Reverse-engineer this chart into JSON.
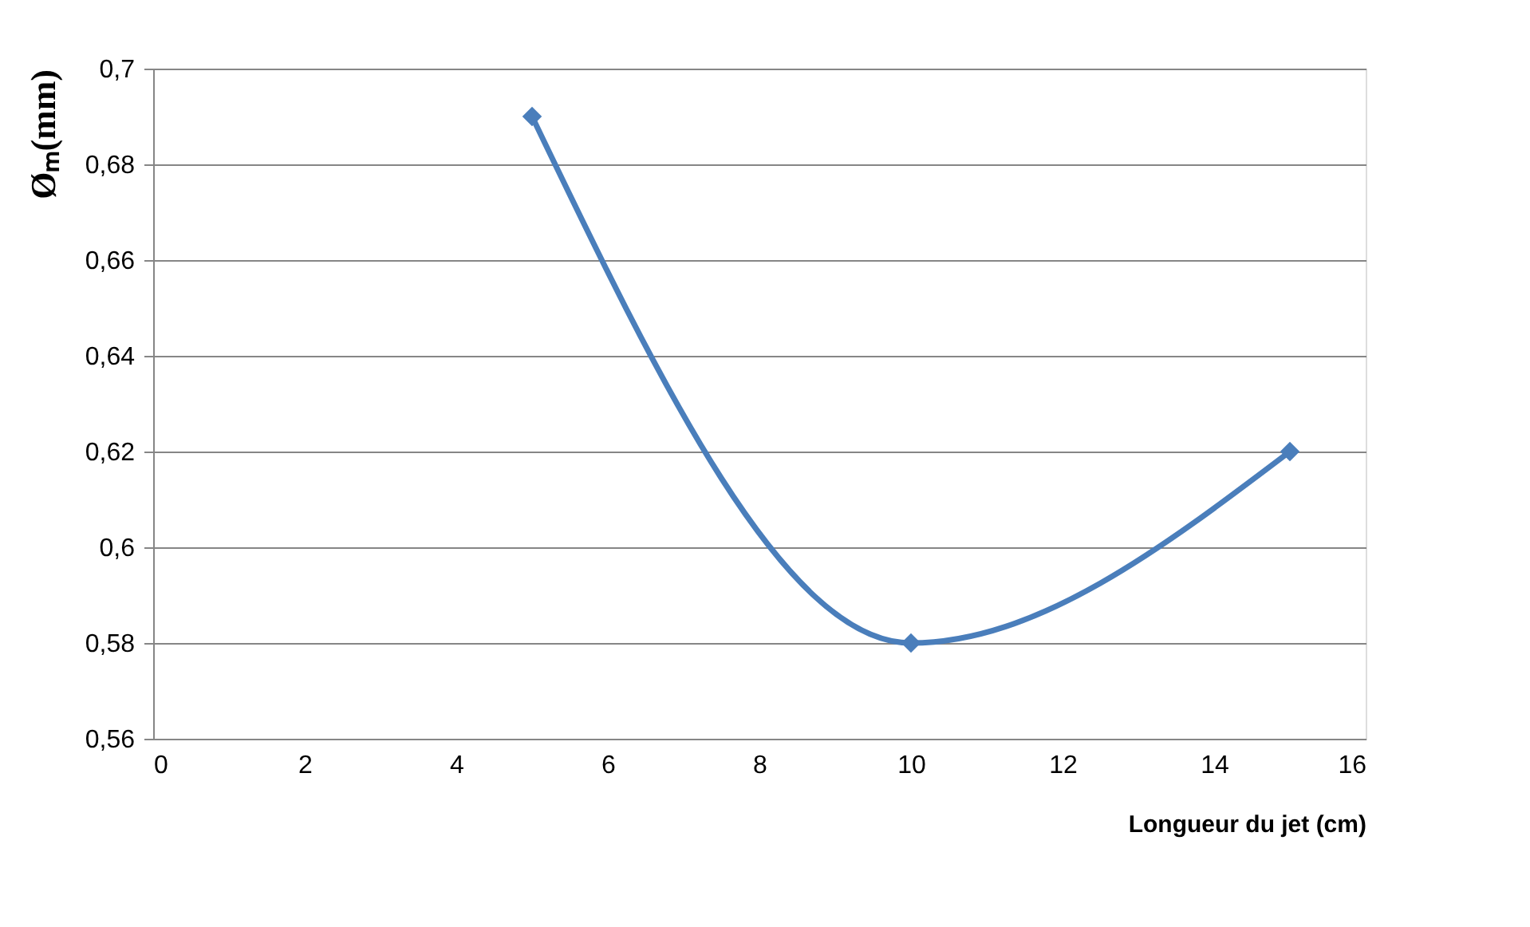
{
  "chart_data": {
    "type": "line",
    "xlabel": "Longueur du jet (cm)",
    "ylabel": "Øₘ(mm)",
    "x": [
      5,
      10,
      15
    ],
    "series": [
      {
        "color": "#4a7ebb",
        "values": [
          0.69,
          0.58,
          0.62
        ]
      }
    ],
    "xlim": [
      0,
      16
    ],
    "xticks": [
      0,
      2,
      4,
      6,
      8,
      10,
      12,
      14,
      16
    ],
    "ylim": [
      0.56,
      0.7
    ],
    "yticks": [
      {
        "value": 0.56,
        "label": "0,56"
      },
      {
        "value": 0.58,
        "label": "0,58"
      },
      {
        "value": 0.6,
        "label": "0,6"
      },
      {
        "value": 0.62,
        "label": "0,62"
      },
      {
        "value": 0.64,
        "label": "0,64"
      },
      {
        "value": 0.66,
        "label": "0,66"
      },
      {
        "value": 0.68,
        "label": "0,68"
      },
      {
        "value": 0.7,
        "label": "0,7"
      }
    ],
    "grid": "y",
    "marker": "diamond",
    "line_style": "solid"
  }
}
